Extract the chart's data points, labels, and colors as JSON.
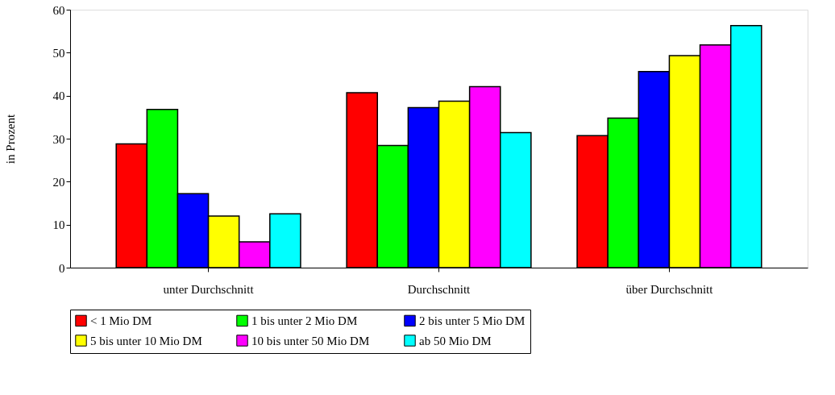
{
  "chart_data": {
    "type": "bar",
    "ylabel": "in Prozent",
    "categories": [
      "unter Durchschnitt",
      "Durchschnitt",
      "über Durchschnitt"
    ],
    "series": [
      {
        "name": "< 1 Mio DM",
        "color": "#ff0000",
        "values": [
          28.8,
          40.7,
          30.7
        ]
      },
      {
        "name": "1 bis unter 2 Mio DM",
        "color": "#00ff00",
        "values": [
          36.8,
          28.4,
          34.8
        ]
      },
      {
        "name": "2 bis unter 5 Mio DM",
        "color": "#0000ff",
        "values": [
          17.2,
          37.2,
          45.6
        ]
      },
      {
        "name": "5 bis unter 10 Mio DM",
        "color": "#ffff00",
        "values": [
          12.0,
          38.7,
          49.3
        ]
      },
      {
        "name": "10 bis unter 50 Mio DM",
        "color": "#ff00ff",
        "values": [
          6.0,
          42.1,
          51.8
        ]
      },
      {
        "name": "ab 50 Mio DM",
        "color": "#00ffff",
        "values": [
          12.5,
          31.4,
          56.3
        ]
      }
    ],
    "ylim": [
      0,
      60
    ],
    "yticks": [
      0,
      10,
      20,
      30,
      40,
      50,
      60
    ],
    "grid": false,
    "legend": "bottom"
  }
}
